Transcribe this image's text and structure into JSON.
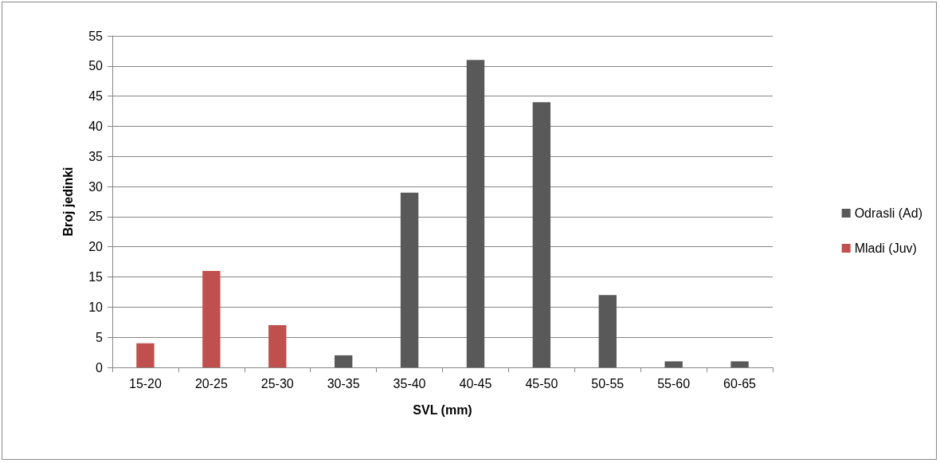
{
  "chart_data": {
    "type": "bar",
    "xlabel": "SVL (mm)",
    "ylabel": "Broj jedinki",
    "categories": [
      "15-20",
      "20-25",
      "25-30",
      "30-35",
      "35-40",
      "40-45",
      "45-50",
      "50-55",
      "55-60",
      "60-65"
    ],
    "series": [
      {
        "name": "Odrasli (Ad)",
        "color": "#595959",
        "values": [
          null,
          null,
          null,
          2,
          29,
          51,
          44,
          12,
          1,
          1
        ]
      },
      {
        "name": "Mladi (Juv)",
        "color": "#c0504d",
        "values": [
          4,
          16,
          7,
          null,
          null,
          null,
          null,
          null,
          null,
          null
        ]
      }
    ],
    "stacked": true,
    "ylim": [
      0,
      55
    ],
    "yticks": [
      0,
      5,
      10,
      15,
      20,
      25,
      30,
      35,
      40,
      45,
      50,
      55
    ],
    "grid": "y",
    "legend": "right"
  }
}
